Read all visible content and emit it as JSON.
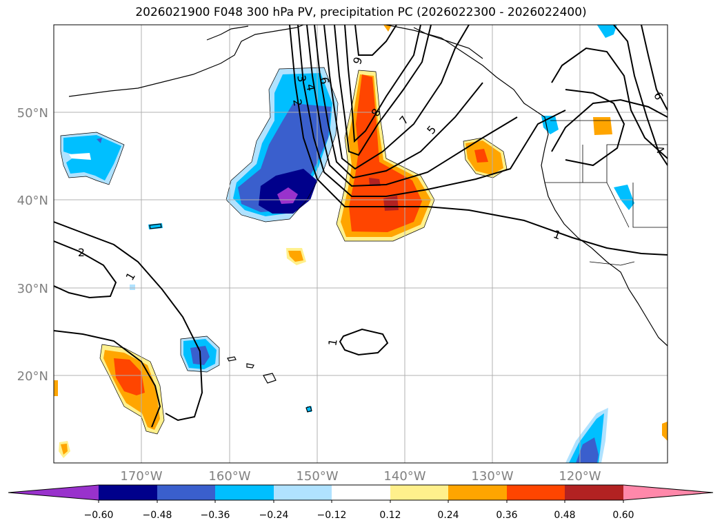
{
  "title": "2026021900 F048 300 hPa PV, precipitation PC (2026022300 - 2026022400)",
  "map": {
    "projection": "plate-carree",
    "lon_range": [
      -180,
      -110
    ],
    "lat_range": [
      10,
      60
    ],
    "grid": true,
    "lat_labels": [
      {
        "lat": 50,
        "label": "50°N"
      },
      {
        "lat": 40,
        "label": "40°N"
      },
      {
        "lat": 30,
        "label": "30°N"
      },
      {
        "lat": 20,
        "label": "20°N"
      }
    ],
    "lon_labels": [
      {
        "lon": -170,
        "label": "170°W"
      },
      {
        "lon": -160,
        "label": "160°W"
      },
      {
        "lon": -150,
        "label": "150°W"
      },
      {
        "lon": -140,
        "label": "140°W"
      },
      {
        "lon": -130,
        "label": "130°W"
      },
      {
        "lon": -120,
        "label": "120°W"
      }
    ],
    "contour_labels": [
      "1",
      "2",
      "3",
      "4",
      "5",
      "6",
      "7",
      "8",
      "9"
    ],
    "axis_label_color": "#808080"
  },
  "colorbar": {
    "ticks": [
      "−0.60",
      "−0.48",
      "−0.36",
      "−0.24",
      "−0.12",
      "0.12",
      "0.24",
      "0.36",
      "0.48",
      "0.60"
    ],
    "colors": [
      "#9932cc",
      "#00008b",
      "#3a5fcd",
      "#00bfff",
      "#b0e2ff",
      "#ffffff",
      "#fff08c",
      "#ffa500",
      "#ff4500",
      "#b22222",
      "#ff88aa"
    ]
  }
}
